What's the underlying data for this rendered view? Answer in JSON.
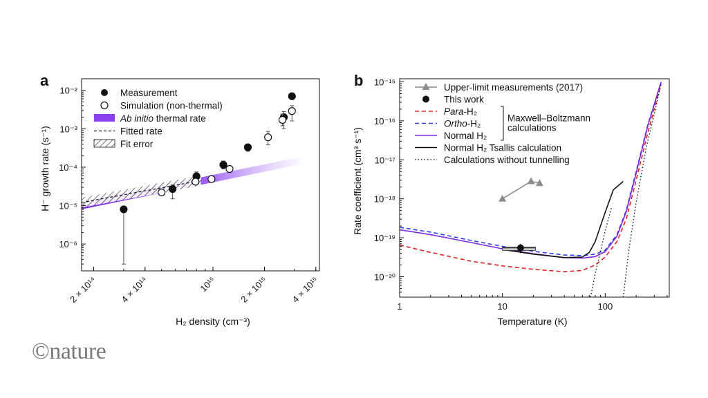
{
  "logo": {
    "text": "©nature"
  },
  "chart_data": [
    {
      "panel": "a",
      "type": "scatter",
      "xscale": "log",
      "yscale": "log",
      "xlim": [
        170000000000000.0,
        4200000000000000.0
      ],
      "ylim": [
        2e-07,
        0.02
      ],
      "xticks": [
        {
          "value": 200000000000000.0,
          "label": "2 × 10¹⁴"
        },
        {
          "value": 400000000000000.0,
          "label": "4 × 10¹⁴"
        },
        {
          "value": 1000000000000000.0,
          "label": "10¹⁵"
        },
        {
          "value": 2000000000000000.0,
          "label": "2 × 10¹⁵"
        },
        {
          "value": 4000000000000000.0,
          "label": "4 × 10¹⁵"
        }
      ],
      "yticks": [
        {
          "value": 1e-06,
          "label": "10⁻⁶"
        },
        {
          "value": 1e-05,
          "label": "10⁻⁵"
        },
        {
          "value": 0.0001,
          "label": "10⁻⁴"
        },
        {
          "value": 0.001,
          "label": "10⁻³"
        },
        {
          "value": 0.01,
          "label": "10⁻²"
        }
      ],
      "xlabel": "H₂ density (cm⁻³)",
      "ylabel": "H⁻ growth rate (s⁻¹)",
      "legend_position": "top-left",
      "legend": [
        {
          "kind": "filled-circle",
          "label": "Measurement"
        },
        {
          "kind": "open-circle",
          "label": "Simulation (non-thermal)"
        },
        {
          "kind": "band",
          "label_italic": "Ab initio",
          "label": " thermal rate"
        },
        {
          "kind": "dashed",
          "label": "Fitted rate"
        },
        {
          "kind": "hatch",
          "label": "Fit error"
        }
      ],
      "series": [
        {
          "name": "Measurement",
          "x": [
            300000000000000.0,
            580000000000000.0,
            800000000000000.0,
            1150000000000000.0,
            1600000000000000.0,
            2600000000000000.0,
            2900000000000000.0
          ],
          "y": [
            8e-06,
            2.7e-05,
            5.8e-05,
            0.000115,
            0.00033,
            0.002,
            0.007
          ],
          "ylo": [
            3e-07,
            1.5e-05,
            4.5e-05,
            9e-05,
            0.00026,
            0.001,
            0.0058
          ],
          "yhi": [
            9e-06,
            3.5e-05,
            7.5e-05,
            0.000145,
            0.0004,
            0.0028,
            0.0085
          ]
        },
        {
          "name": "Simulation (non-thermal)",
          "x": [
            500000000000000.0,
            790000000000000.0,
            980000000000000.0,
            1250000000000000.0,
            2100000000000000.0,
            2550000000000000.0,
            2900000000000000.0
          ],
          "y": [
            2.2e-05,
            4.2e-05,
            4.9e-05,
            9e-05,
            0.0006,
            0.0017,
            0.0029
          ],
          "ylo": [
            2e-05,
            3.8e-05,
            4.5e-05,
            7.5e-05,
            0.00038,
            0.0012,
            0.0016
          ],
          "yhi": [
            2.4e-05,
            4.6e-05,
            5.3e-05,
            0.000105,
            0.00085,
            0.0024,
            0.004
          ]
        }
      ],
      "band": {
        "x": [
          170000000000000.0,
          3300000000000000.0
        ],
        "y_center": [
          1e-05,
          0.00015
        ],
        "y_halfwidth_factor": 1.25,
        "color": "#8a3ff0"
      },
      "fit": {
        "x": [
          170000000000000.0,
          850000000000000.0
        ],
        "y": [
          1.2e-05,
          4.5e-05
        ],
        "err_factor": 1.35
      }
    },
    {
      "panel": "b",
      "type": "line",
      "xscale": "log",
      "yscale": "log",
      "xlim": [
        1,
        420
      ],
      "ylim": [
        3e-21,
        1.2e-15
      ],
      "xticks": [
        {
          "value": 1,
          "label": "1"
        },
        {
          "value": 10,
          "label": "10"
        },
        {
          "value": 100,
          "label": "100"
        }
      ],
      "yticks": [
        {
          "value": 1e-20,
          "label": "10⁻²⁰"
        },
        {
          "value": 1e-19,
          "label": "10⁻¹⁹"
        },
        {
          "value": 1e-18,
          "label": "10⁻¹⁸"
        },
        {
          "value": 1e-17,
          "label": "10⁻¹⁷"
        },
        {
          "value": 1e-16,
          "label": "10⁻¹⁶"
        },
        {
          "value": 1e-15,
          "label": "10⁻¹⁵"
        }
      ],
      "xlabel": "Temperature (K)",
      "ylabel": "Rate coefficient (cm³ s⁻¹)",
      "legend_position": "top-left",
      "legend": [
        {
          "kind": "triangle-line",
          "label": "Upper-limit measurements (2017)",
          "color": "#8c8c8c"
        },
        {
          "kind": "filled-circle",
          "label": "This work"
        },
        {
          "kind": "dashed",
          "label_italic": "Para",
          "label": "-H₂",
          "color": "#e02020"
        },
        {
          "kind": "dashed",
          "label_italic": "Ortho",
          "label": "-H₂",
          "color": "#2a3ee0"
        },
        {
          "kind": "solid",
          "label": "Normal H₂",
          "color": "#7c2ae0"
        },
        {
          "kind": "solid",
          "label": "Normal H₂ Tsallis calculation",
          "color": "#111111"
        },
        {
          "kind": "dotted",
          "label": "Calculations without tunnelling",
          "color": "#111111"
        }
      ],
      "bracket_label": [
        "Maxwell–Boltzmann",
        "calculations"
      ],
      "series": [
        {
          "name": "Para-H₂",
          "style": "dashed",
          "color": "#e02020",
          "x": [
            1,
            2,
            5,
            10,
            20,
            40,
            60,
            80,
            100,
            130,
            160,
            200,
            260,
            350
          ],
          "y": [
            6.5e-20,
            4.2e-20,
            2.5e-20,
            1.9e-20,
            1.55e-20,
            1.35e-20,
            1.45e-20,
            2e-20,
            3.2e-20,
            8e-20,
            3e-19,
            3e-18,
            5e-17,
            9e-16
          ]
        },
        {
          "name": "Ortho-H₂",
          "style": "dashed",
          "color": "#2a3ee0",
          "x": [
            1,
            2,
            5,
            10,
            20,
            40,
            60,
            80,
            100,
            130,
            160,
            200,
            260,
            350
          ],
          "y": [
            1.85e-19,
            1.4e-19,
            8.5e-20,
            6e-20,
            4.5e-20,
            3.6e-20,
            3.5e-20,
            3.8e-20,
            4.8e-20,
            1.2e-19,
            5e-19,
            5e-18,
            8e-17,
            1e-15
          ]
        },
        {
          "name": "Normal H₂",
          "style": "solid",
          "color": "#7c2ae0",
          "x": [
            1,
            2,
            5,
            10,
            20,
            40,
            60,
            80,
            100,
            130,
            160,
            200,
            260,
            350
          ],
          "y": [
            1.6e-19,
            1.2e-19,
            7.5e-20,
            5.2e-20,
            3.9e-20,
            3.1e-20,
            3e-20,
            3.3e-20,
            4.4e-20,
            1.1e-19,
            4.6e-19,
            4.5e-18,
            7.5e-17,
            1e-15
          ]
        },
        {
          "name": "Normal H₂ Tsallis calculation",
          "style": "solid",
          "color": "#111111",
          "x": [
            10,
            20,
            40,
            60,
            70,
            80,
            90,
            100,
            120,
            150
          ],
          "y": [
            5e-20,
            3.8e-20,
            3.1e-20,
            3.2e-20,
            4.2e-20,
            8e-20,
            2e-19,
            4.5e-19,
            1.7e-18,
            2.8e-18
          ]
        },
        {
          "name": "Calculations without tunnelling (low T)",
          "style": "dotted",
          "color": "#111111",
          "x": [
            72,
            80,
            90,
            100,
            115
          ],
          "y": [
            3e-21,
            1.2e-20,
            4.5e-20,
            1.5e-19,
            6e-19
          ]
        },
        {
          "name": "Calculations without tunnelling (high T)",
          "style": "dotted",
          "color": "#111111",
          "x": [
            150,
            170,
            200,
            250,
            300,
            350
          ],
          "y": [
            3e-21,
            5e-20,
            8e-19,
            2e-17,
            1.5e-16,
            9e-16
          ]
        },
        {
          "name": "Upper-limit measurements (2017)",
          "style": "triangle-line",
          "color": "#8c8c8c",
          "x": [
            10,
            19,
            23
          ],
          "y": [
            1e-18,
            2.8e-18,
            2.5e-18
          ]
        }
      ],
      "this_work": {
        "x": 15,
        "y": 5.5e-20,
        "xlo": 10,
        "xhi": 21,
        "ylo": 4e-20,
        "yhi": 7e-20
      }
    }
  ]
}
